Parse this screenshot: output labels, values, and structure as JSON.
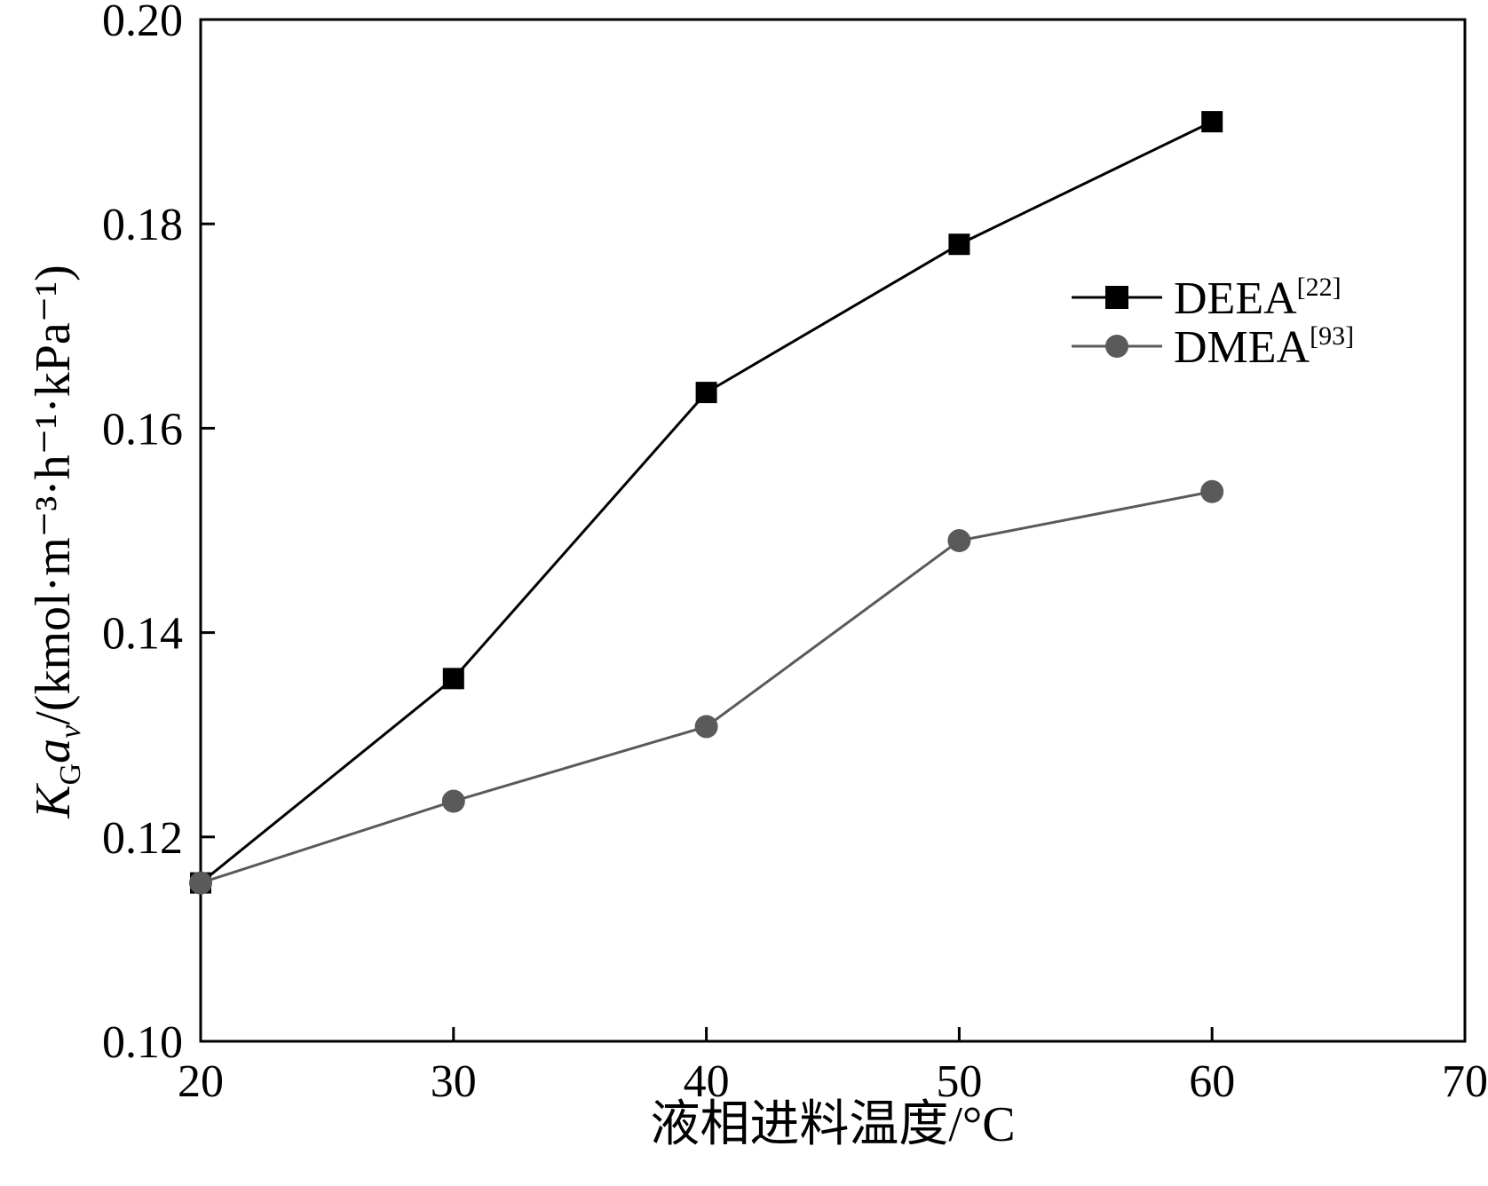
{
  "chart_data": {
    "type": "line",
    "xlabel": "液相进料温度/°C",
    "ylabel": {
      "symbol_main": "K",
      "symbol_sub": "G",
      "symbol_main2": "a",
      "symbol_sub2": "v",
      "unit": "/(kmol·m⁻³·h⁻¹·kPa⁻¹)"
    },
    "xlim": [
      20,
      70
    ],
    "ylim": [
      0.1,
      0.2
    ],
    "x_ticks": [
      20,
      30,
      40,
      50,
      60,
      70
    ],
    "x_tick_labels": [
      "20",
      "30",
      "40",
      "50",
      "60",
      "70"
    ],
    "y_ticks": [
      0.1,
      0.12,
      0.14,
      0.16,
      0.18,
      0.2
    ],
    "y_tick_labels": [
      "0.10",
      "0.12",
      "0.14",
      "0.16",
      "0.18",
      "0.20"
    ],
    "legend_position": "top-right",
    "grid": false,
    "series": [
      {
        "name": "DEEA",
        "ref": "[22]",
        "marker": "square",
        "color": "#000000",
        "x": [
          20,
          30,
          40,
          50,
          60
        ],
        "y": [
          0.1155,
          0.1355,
          0.1635,
          0.178,
          0.19
        ]
      },
      {
        "name": "DMEA",
        "ref": "[93]",
        "marker": "circle",
        "color": "#5a5a5a",
        "x": [
          20,
          30,
          40,
          50,
          60
        ],
        "y": [
          0.1155,
          0.1235,
          0.1308,
          0.149,
          0.1538
        ]
      }
    ]
  }
}
